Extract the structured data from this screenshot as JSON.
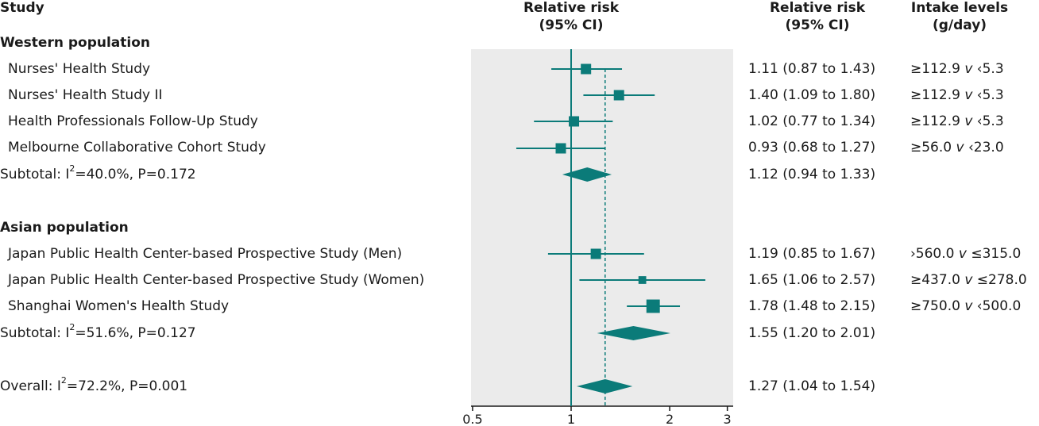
{
  "headers": {
    "study": "Study",
    "rr_plot_line1": "Relative risk",
    "rr_plot_line2": "(95% CI)",
    "rr_text_line1": "Relative risk",
    "rr_text_line2": "(95% CI)",
    "intake_line1": "Intake levels",
    "intake_line2": "(g/day)"
  },
  "sections": {
    "western": "Western population",
    "asian": "Asian population"
  },
  "rows": [
    {
      "study": "Nurses' Health Study",
      "ci_text": "1.11 (0.87 to 1.43)",
      "intake_a": "≥112.9",
      "intake_v": "v",
      "intake_b": "‹5.3"
    },
    {
      "study": "Nurses' Health Study II",
      "ci_text": "1.40 (1.09 to 1.80)",
      "intake_a": "≥112.9",
      "intake_v": "v",
      "intake_b": "‹5.3"
    },
    {
      "study": "Health Professionals Follow-Up Study",
      "ci_text": "1.02 (0.77 to 1.34)",
      "intake_a": "≥112.9",
      "intake_v": "v",
      "intake_b": "‹5.3"
    },
    {
      "study": "Melbourne Collaborative Cohort Study",
      "ci_text": "0.93 (0.68 to 1.27)",
      "intake_a": "≥56.0",
      "intake_v": "v",
      "intake_b": "‹23.0"
    },
    {
      "study": "Japan Public Health Center-based Prospective Study (Men)",
      "ci_text": "1.19 (0.85 to 1.67)",
      "intake_a": "›560.0",
      "intake_v": "v",
      "intake_b": "≤315.0"
    },
    {
      "study": "Japan Public Health Center-based Prospective Study (Women)",
      "ci_text": "1.65 (1.06 to 2.57)",
      "intake_a": "≥437.0",
      "intake_v": "v",
      "intake_b": "≤278.0"
    },
    {
      "study": "Shanghai Women's Health Study",
      "ci_text": "1.78 (1.48 to 2.15)",
      "intake_a": "≥750.0",
      "intake_v": "v",
      "intake_b": "‹500.0"
    }
  ],
  "subtotals": [
    {
      "pre": "Subtotal: I",
      "sup": "2",
      "post": "=40.0%, P=0.172",
      "ci_text": "1.12 (0.94 to 1.33)"
    },
    {
      "pre": "Subtotal: I",
      "sup": "2",
      "post": "=51.6%, P=0.127",
      "ci_text": "1.55 (1.20 to 2.01)"
    }
  ],
  "overall": {
    "pre": "Overall: I",
    "sup": "2",
    "post": "=72.2%, P=0.001",
    "ci_text": "1.27 (1.04 to 1.54)"
  },
  "chart_data": {
    "type": "forest",
    "x_scale": "log",
    "xlim": [
      0.5,
      3
    ],
    "x_ticks": [
      "0.5",
      "1",
      "2",
      "3"
    ],
    "null_line": 1,
    "overall_line": 1.27,
    "colors": {
      "marker": "#0b7b79",
      "panel_bg": "#ebebeb",
      "null_line": "#0b7b79"
    },
    "studies": [
      {
        "study": "Nurses' Health Study",
        "rr": 1.11,
        "lo": 0.87,
        "hi": 1.43,
        "weight": 1.0
      },
      {
        "study": "Nurses' Health Study II",
        "rr": 1.4,
        "lo": 1.09,
        "hi": 1.8,
        "weight": 1.0
      },
      {
        "study": "Health Professionals Follow-Up Study",
        "rr": 1.02,
        "lo": 0.77,
        "hi": 1.34,
        "weight": 1.0
      },
      {
        "study": "Melbourne Collaborative Cohort Study",
        "rr": 0.93,
        "lo": 0.68,
        "hi": 1.27,
        "weight": 1.0
      },
      {
        "study": "Japan Public Health Center-based Prospective Study (Men)",
        "rr": 1.19,
        "lo": 0.85,
        "hi": 1.67,
        "weight": 1.0
      },
      {
        "study": "Japan Public Health Center-based Prospective Study (Women)",
        "rr": 1.65,
        "lo": 1.06,
        "hi": 2.57,
        "weight": 0.75
      },
      {
        "study": "Shanghai Women's Health Study",
        "rr": 1.78,
        "lo": 1.48,
        "hi": 2.15,
        "weight": 1.3
      }
    ],
    "pooled": [
      {
        "label": "Subtotal Western population",
        "rr": 1.12,
        "lo": 0.94,
        "hi": 1.33
      },
      {
        "label": "Subtotal Asian population",
        "rr": 1.55,
        "lo": 1.2,
        "hi": 2.01
      },
      {
        "label": "Overall",
        "rr": 1.27,
        "lo": 1.04,
        "hi": 1.54
      }
    ]
  }
}
